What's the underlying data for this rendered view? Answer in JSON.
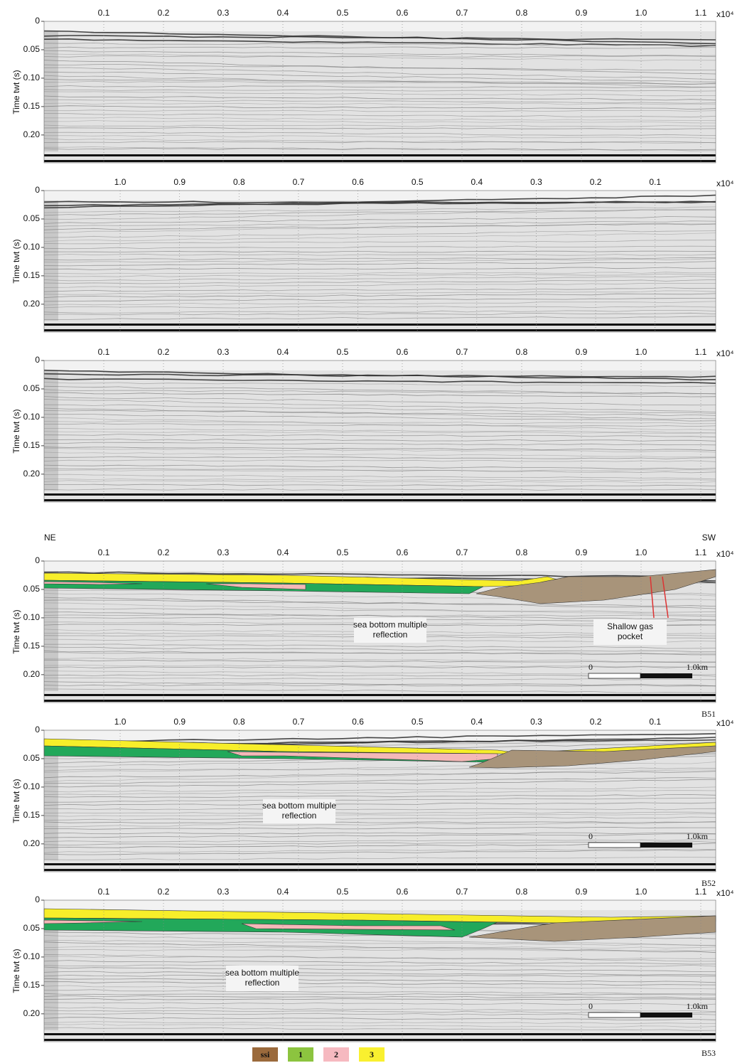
{
  "panels": [
    {
      "xlim": [
        0,
        1.125
      ],
      "xticks": [
        0.1,
        0.2,
        0.3,
        0.4,
        0.5,
        0.6,
        0.7,
        0.8,
        0.9,
        {
          "value": 1,
          "label": "1.0"
        },
        1.1
      ],
      "x_multiplier": "x10⁴",
      "ylim": [
        0,
        0.249
      ],
      "yticks": [
        0,
        0.05,
        {
          "value": 0.1,
          "label": "0.10"
        },
        0.15,
        {
          "value": 0.2,
          "label": "0.20"
        }
      ],
      "y_label": "Time twt (s)"
    },
    {
      "xlim": [
        1.128,
        -0.002
      ],
      "xticks": [
        {
          "value": 1,
          "label": "1.0"
        },
        0.9,
        0.8,
        0.7,
        0.6,
        0.5,
        0.4,
        0.3,
        0.2,
        0.1
      ],
      "x_multiplier": "x10⁴",
      "ylim": [
        0,
        0.249
      ],
      "yticks": [
        0,
        0.05,
        {
          "value": 0.1,
          "label": "0.10"
        },
        0.15,
        {
          "value": 0.2,
          "label": "0.20"
        }
      ],
      "y_label": "Time twt (s)"
    },
    {
      "xlim": [
        0,
        1.125
      ],
      "xticks": [
        0.1,
        0.2,
        0.3,
        0.4,
        0.5,
        0.6,
        0.7,
        0.8,
        0.9,
        {
          "value": 1,
          "label": "1.0"
        },
        1.1
      ],
      "x_multiplier": "x10⁴",
      "ylim": [
        0,
        0.249
      ],
      "yticks": [
        0,
        0.05,
        {
          "value": 0.1,
          "label": "0.10"
        },
        0.15,
        {
          "value": 0.2,
          "label": "0.20"
        }
      ],
      "y_label": "Time twt (s)"
    },
    {
      "side_labels": [
        "NE",
        "SW"
      ],
      "xlim": [
        0,
        1.125
      ],
      "xticks": [
        0.1,
        0.2,
        0.3,
        0.4,
        0.5,
        0.6,
        0.7,
        0.8,
        0.9,
        {
          "value": 1,
          "label": "1.0"
        },
        1.1
      ],
      "x_multiplier": "x10⁴",
      "ylim": [
        0,
        0.249
      ],
      "yticks": [
        0,
        0.05,
        {
          "value": 0.1,
          "label": "0.10"
        },
        0.15,
        {
          "value": 0.2,
          "label": "0.20"
        }
      ],
      "y_label": "Time twt (s)",
      "annotations": [
        [
          "sea bottom multiple",
          "reflection"
        ],
        [
          "Shallow gas",
          "pocket"
        ]
      ],
      "scale_bar": [
        "0",
        "1.0km"
      ],
      "label": "B51"
    },
    {
      "xlim": [
        1.128,
        -0.002
      ],
      "xticks": [
        {
          "value": 1,
          "label": "1.0"
        },
        0.9,
        0.8,
        0.7,
        0.6,
        0.5,
        0.4,
        0.3,
        0.2,
        0.1
      ],
      "x_multiplier": "x10⁴",
      "ylim": [
        0,
        0.249
      ],
      "yticks": [
        0,
        0.05,
        {
          "value": 0.1,
          "label": "0.10"
        },
        0.15,
        {
          "value": 0.2,
          "label": "0.20"
        }
      ],
      "y_label": "Time twt (s)",
      "annotations": [
        [
          "sea bottom multiple",
          "reflection"
        ]
      ],
      "scale_bar": [
        "0",
        "1.0km"
      ],
      "label": "B52"
    },
    {
      "xlim": [
        0,
        1.125
      ],
      "xticks": [
        0.1,
        0.2,
        0.3,
        0.4,
        0.5,
        0.6,
        0.7,
        0.8,
        0.9,
        {
          "value": 1,
          "label": "1.0"
        },
        1.1
      ],
      "x_multiplier": "x10⁴",
      "ylim": [
        0,
        0.249
      ],
      "yticks": [
        0,
        0.05,
        {
          "value": 0.1,
          "label": "0.10"
        },
        0.15,
        {
          "value": 0.2,
          "label": "0.20"
        }
      ],
      "y_label": "Time twt (s)",
      "annotations": [
        [
          "sea bottom multiple",
          "reflection"
        ]
      ],
      "scale_bar": [
        "0",
        "1.0km"
      ],
      "label": "B53"
    }
  ],
  "legend": [
    {
      "label": "ssi",
      "color": "#9b6a3c"
    },
    {
      "label": "1",
      "color": "#8cc43f"
    },
    {
      "label": "2",
      "color": "#f6b9c0"
    },
    {
      "label": "3",
      "color": "#f9f02f"
    }
  ]
}
